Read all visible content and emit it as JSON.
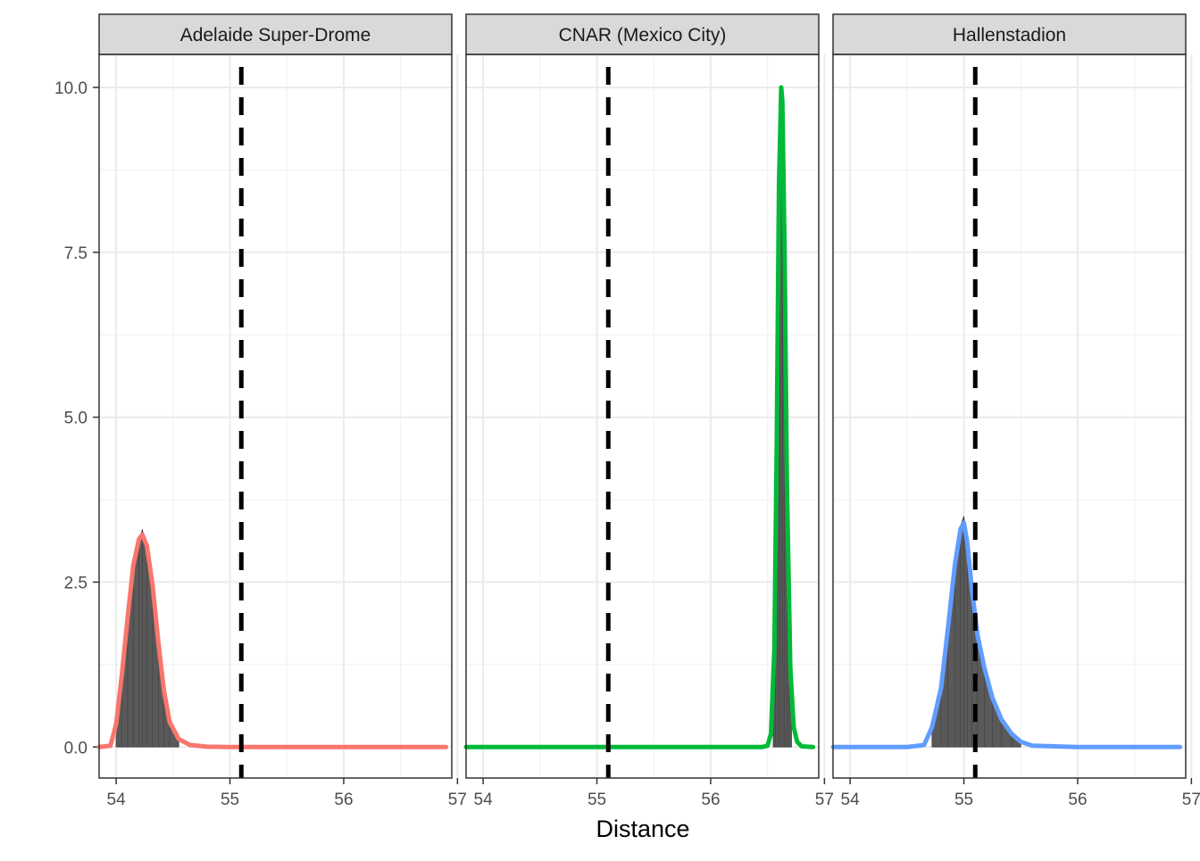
{
  "chart_data": {
    "type": "area",
    "xlabel": "Distance",
    "ylabel": "",
    "xlim": [
      53.85,
      56.95
    ],
    "ylim": [
      -0.47,
      10.5
    ],
    "x_ticks": [
      54,
      55,
      56,
      57
    ],
    "y_ticks": [
      0.0,
      2.5,
      5.0,
      7.5,
      10.0
    ],
    "x_tick_labels": [
      "54",
      "55",
      "56",
      "57"
    ],
    "y_tick_labels": [
      "0.0",
      "2.5",
      "5.0",
      "7.5",
      "10.0"
    ],
    "grid": true,
    "reference_line": {
      "x": 55.1,
      "style": "dashed",
      "color": "#000000"
    },
    "panels": [
      {
        "title": "Adelaide Super-Drome",
        "color": "#F8766D",
        "curve": {
          "x": [
            53.85,
            53.95,
            54.0,
            54.05,
            54.1,
            54.15,
            54.2,
            54.23,
            54.27,
            54.32,
            54.37,
            54.42,
            54.47,
            54.55,
            54.65,
            54.8,
            55.0,
            55.5,
            56.0,
            56.5,
            56.9
          ],
          "y": [
            0.0,
            0.02,
            0.35,
            1.1,
            1.95,
            2.75,
            3.15,
            3.22,
            3.05,
            2.45,
            1.6,
            0.85,
            0.38,
            0.12,
            0.03,
            0.005,
            0.0,
            0.0,
            0.0,
            0.0,
            0.0
          ]
        },
        "histogram": {
          "bin_width": 0.01,
          "bins": [
            {
              "x": 54.0,
              "y": 0.15
            },
            {
              "x": 54.05,
              "y": 0.85
            },
            {
              "x": 54.1,
              "y": 1.7
            },
            {
              "x": 54.15,
              "y": 2.6
            },
            {
              "x": 54.2,
              "y": 3.1
            },
            {
              "x": 54.23,
              "y": 3.3
            },
            {
              "x": 54.27,
              "y": 2.95
            },
            {
              "x": 54.32,
              "y": 2.35
            },
            {
              "x": 54.37,
              "y": 1.45
            },
            {
              "x": 54.42,
              "y": 0.7
            },
            {
              "x": 54.47,
              "y": 0.3
            },
            {
              "x": 54.55,
              "y": 0.1
            }
          ]
        }
      },
      {
        "title": "CNAR (Mexico City)",
        "color": "#00BA38",
        "curve": {
          "x": [
            53.85,
            54.5,
            55.0,
            55.5,
            56.0,
            56.45,
            56.5,
            56.53,
            56.56,
            56.58,
            56.6,
            56.62,
            56.63,
            56.65,
            56.67,
            56.7,
            56.73,
            56.76,
            56.8,
            56.9
          ],
          "y": [
            0.0,
            0.0,
            0.0,
            0.0,
            0.0,
            0.0,
            0.02,
            0.2,
            1.5,
            4.5,
            8.5,
            10.0,
            9.8,
            7.5,
            4.0,
            1.2,
            0.3,
            0.08,
            0.01,
            0.0
          ]
        },
        "histogram": {
          "bin_width": 0.005,
          "bins": [
            {
              "x": 56.55,
              "y": 1.0
            },
            {
              "x": 56.57,
              "y": 3.5
            },
            {
              "x": 56.59,
              "y": 7.0
            },
            {
              "x": 56.61,
              "y": 9.6
            },
            {
              "x": 56.63,
              "y": 9.4
            },
            {
              "x": 56.65,
              "y": 7.0
            },
            {
              "x": 56.67,
              "y": 3.6
            },
            {
              "x": 56.69,
              "y": 1.3
            },
            {
              "x": 56.71,
              "y": 0.4
            }
          ]
        }
      },
      {
        "title": "Hallenstadion",
        "color": "#619CFF",
        "curve": {
          "x": [
            53.85,
            54.0,
            54.5,
            54.65,
            54.72,
            54.8,
            54.86,
            54.92,
            54.97,
            55.0,
            55.03,
            55.07,
            55.12,
            55.18,
            55.25,
            55.33,
            55.42,
            55.5,
            55.6,
            56.0,
            56.5,
            56.9
          ],
          "y": [
            0.0,
            0.0,
            0.0,
            0.03,
            0.3,
            0.9,
            1.8,
            2.75,
            3.3,
            3.4,
            3.1,
            2.4,
            1.7,
            1.2,
            0.75,
            0.42,
            0.2,
            0.08,
            0.02,
            0.0,
            0.0,
            0.0
          ]
        },
        "histogram": {
          "bin_width": 0.01,
          "bins": [
            {
              "x": 54.72,
              "y": 0.25
            },
            {
              "x": 54.8,
              "y": 0.85
            },
            {
              "x": 54.86,
              "y": 1.75
            },
            {
              "x": 54.92,
              "y": 2.7
            },
            {
              "x": 54.97,
              "y": 3.35
            },
            {
              "x": 55.0,
              "y": 3.5
            },
            {
              "x": 55.03,
              "y": 3.05
            },
            {
              "x": 55.07,
              "y": 2.35
            },
            {
              "x": 55.12,
              "y": 1.65
            },
            {
              "x": 55.18,
              "y": 1.15
            },
            {
              "x": 55.25,
              "y": 0.7
            },
            {
              "x": 55.33,
              "y": 0.38
            },
            {
              "x": 55.42,
              "y": 0.18
            },
            {
              "x": 55.5,
              "y": 0.06
            }
          ]
        }
      }
    ]
  }
}
